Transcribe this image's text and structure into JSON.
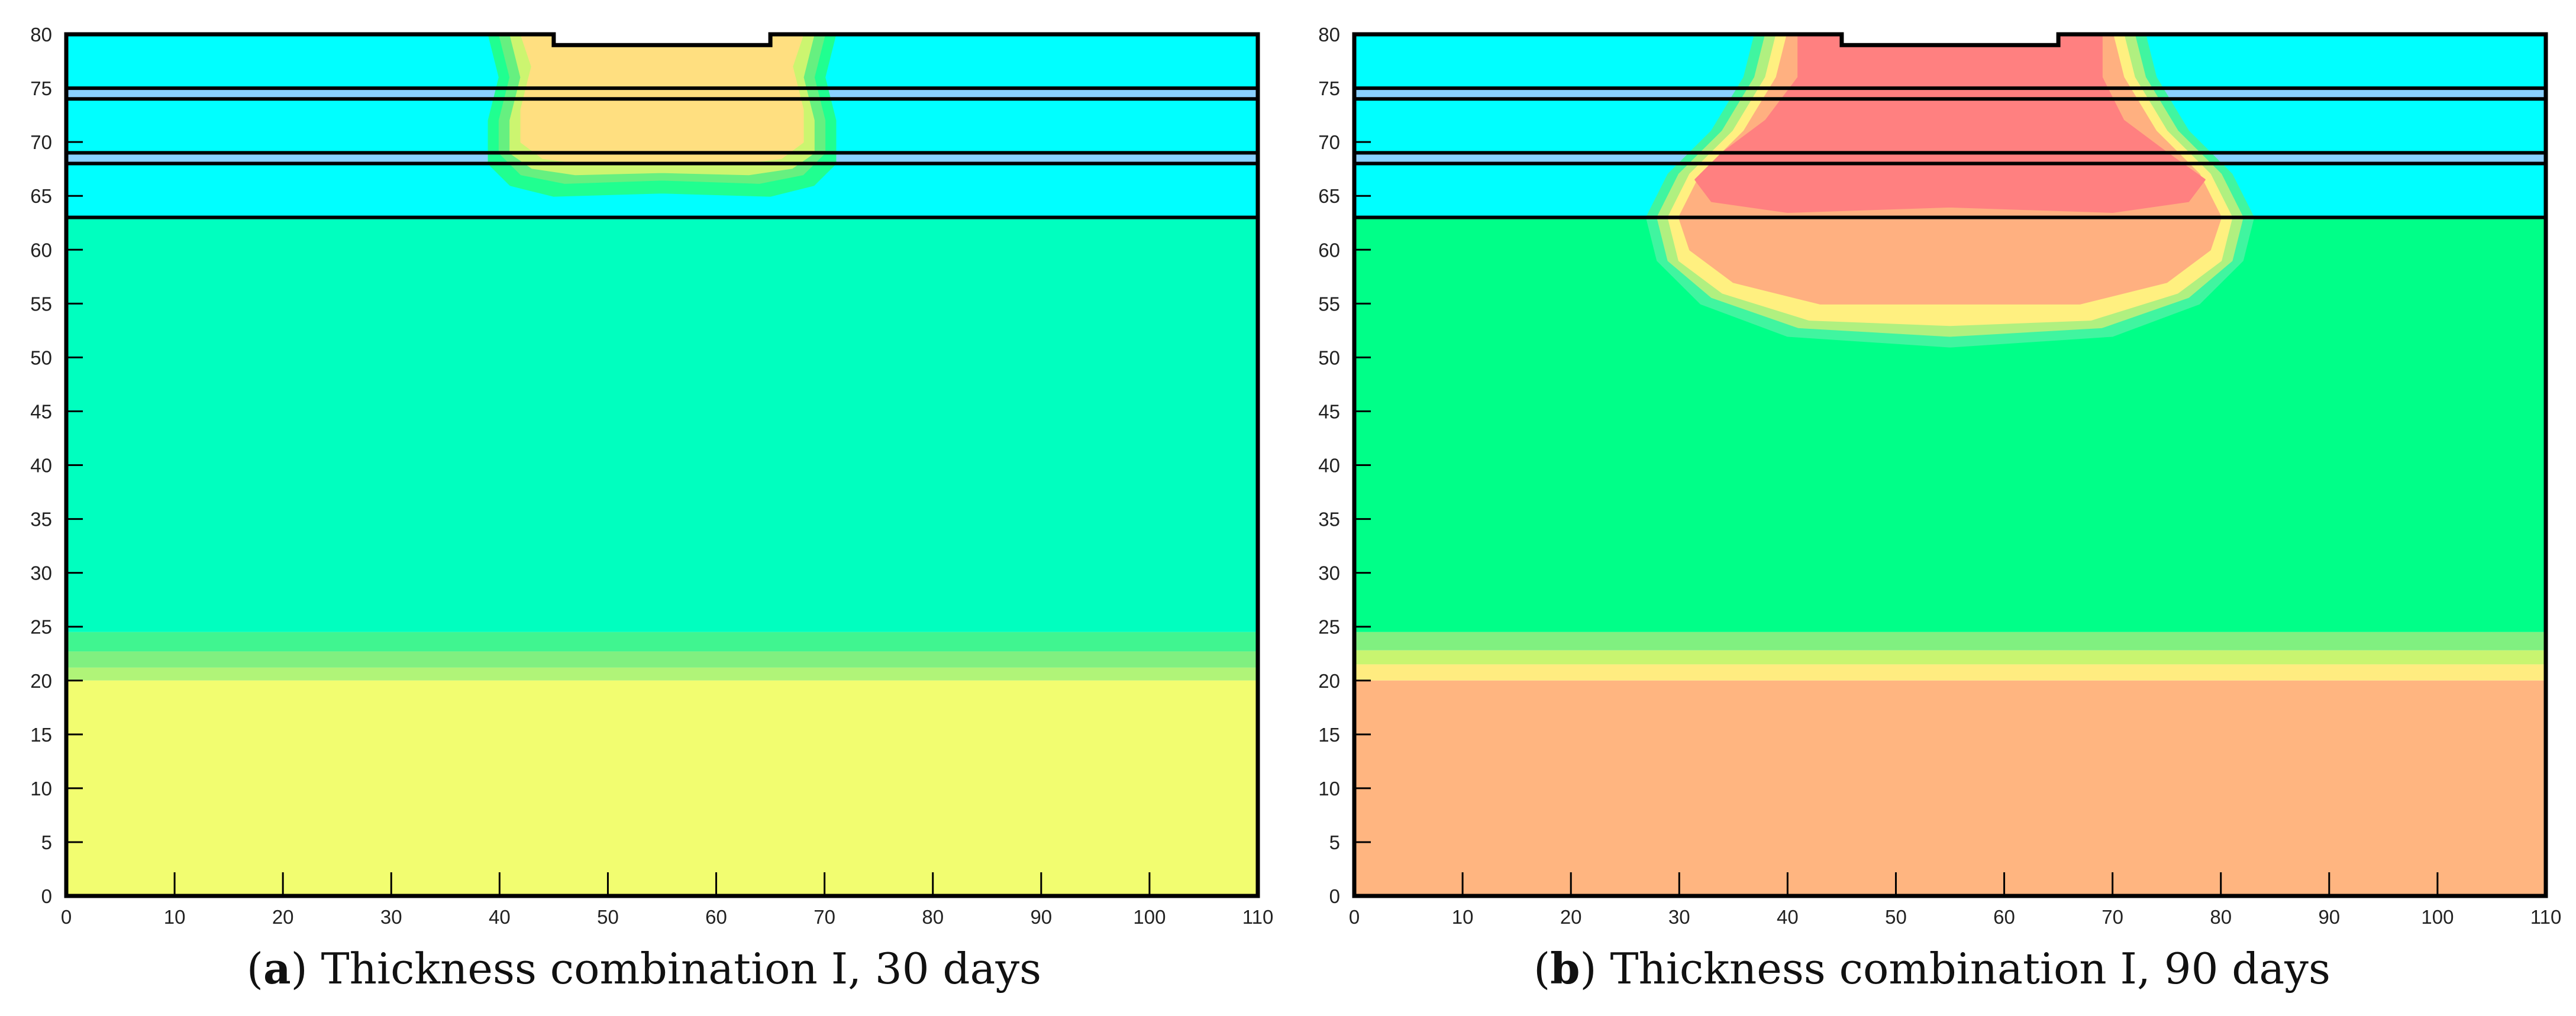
{
  "chart_data": [
    {
      "type": "heatmap",
      "panel_letter": "a",
      "caption_text": "Thickness combination I, 30 days",
      "xlim": [
        0,
        110
      ],
      "ylim": [
        0,
        80
      ],
      "x_ticks": [
        0,
        10,
        20,
        30,
        40,
        50,
        60,
        70,
        80,
        90,
        100,
        110
      ],
      "y_ticks": [
        0,
        5,
        10,
        15,
        20,
        25,
        30,
        35,
        40,
        45,
        50,
        55,
        60,
        65,
        70,
        75,
        80
      ],
      "notch": {
        "x1": 45,
        "x2": 65,
        "depth": 1
      },
      "layer_boundaries": [
        74,
        75,
        68,
        69,
        63
      ],
      "background_bands": [
        {
          "y0": 63,
          "y1": 80,
          "color": "#00ffff"
        },
        {
          "y0": 24.5,
          "y1": 63,
          "color": "#00ffbf"
        },
        {
          "y0": 22.7,
          "y1": 24.5,
          "color": "#40f590"
        },
        {
          "y0": 21.2,
          "y1": 22.7,
          "color": "#80f080"
        },
        {
          "y0": 20,
          "y1": 21.2,
          "color": "#b0f478"
        },
        {
          "y0": 0,
          "y1": 20,
          "color": "#f2fd70"
        }
      ],
      "plumes": [
        {
          "color": "#20ff90",
          "outline": [
            [
              39,
              80
            ],
            [
              40,
              76
            ],
            [
              39,
              72
            ],
            [
              39,
              68
            ],
            [
              41,
              66
            ],
            [
              45,
              65
            ],
            [
              55,
              65.3
            ],
            [
              65,
              65
            ],
            [
              69,
              66
            ],
            [
              71,
              68
            ],
            [
              71,
              72
            ],
            [
              70,
              76
            ],
            [
              71,
              80
            ]
          ]
        },
        {
          "color": "#66f080",
          "outline": [
            [
              40,
              80
            ],
            [
              41,
              76
            ],
            [
              40,
              72
            ],
            [
              40,
              69
            ],
            [
              42,
              67
            ],
            [
              46,
              66.2
            ],
            [
              55,
              66.5
            ],
            [
              64,
              66.2
            ],
            [
              68,
              67
            ],
            [
              70,
              69
            ],
            [
              70,
              72
            ],
            [
              69,
              76
            ],
            [
              70,
              80
            ]
          ]
        },
        {
          "color": "#ccf570",
          "outline": [
            [
              41,
              80
            ],
            [
              42,
              76
            ],
            [
              41,
              72
            ],
            [
              41,
              69
            ],
            [
              43,
              67.6
            ],
            [
              47,
              67
            ],
            [
              55,
              67.2
            ],
            [
              63,
              67
            ],
            [
              67,
              67.6
            ],
            [
              69,
              69
            ],
            [
              69,
              72
            ],
            [
              68,
              76
            ],
            [
              69,
              80
            ]
          ]
        },
        {
          "color": "#ffdf80",
          "outline": [
            [
              42,
              80
            ],
            [
              43,
              77
            ],
            [
              42,
              73
            ],
            [
              42,
              70
            ],
            [
              44,
              68.5
            ],
            [
              48,
              68
            ],
            [
              55,
              68
            ],
            [
              62,
              68
            ],
            [
              66,
              68.5
            ],
            [
              68,
              70
            ],
            [
              68,
              73
            ],
            [
              67,
              77
            ],
            [
              68,
              80
            ]
          ]
        }
      ],
      "colors": {
        "layer_line": "#000000",
        "thin_layer": "#8ad0ff"
      }
    },
    {
      "type": "heatmap",
      "panel_letter": "b",
      "caption_text": "Thickness combination I, 90 days",
      "xlim": [
        0,
        110
      ],
      "ylim": [
        0,
        80
      ],
      "x_ticks": [
        0,
        10,
        20,
        30,
        40,
        50,
        60,
        70,
        80,
        90,
        100,
        110
      ],
      "y_ticks": [
        0,
        5,
        10,
        15,
        20,
        25,
        30,
        35,
        40,
        45,
        50,
        55,
        60,
        65,
        70,
        75,
        80
      ],
      "notch": {
        "x1": 45,
        "x2": 65,
        "depth": 1
      },
      "layer_boundaries": [
        74,
        75,
        68,
        69,
        63
      ],
      "background_bands": [
        {
          "y0": 63,
          "y1": 80,
          "color": "#00ffff"
        },
        {
          "y0": 24.5,
          "y1": 63,
          "color": "#00ff88"
        },
        {
          "y0": 22.8,
          "y1": 24.5,
          "color": "#80f080"
        },
        {
          "y0": 21.5,
          "y1": 22.8,
          "color": "#c8f570"
        },
        {
          "y0": 20,
          "y1": 21.5,
          "color": "#ffec80"
        },
        {
          "y0": 0,
          "y1": 20,
          "color": "#ffb580"
        }
      ],
      "plumes": [
        {
          "color": "#40f5a0",
          "outline": [
            [
              37,
              80
            ],
            [
              36,
              76
            ],
            [
              33,
              71
            ],
            [
              29,
              67
            ],
            [
              27,
              63
            ],
            [
              28,
              59
            ],
            [
              32,
              55
            ],
            [
              40,
              52
            ],
            [
              55,
              51
            ],
            [
              70,
              52
            ],
            [
              78,
              55
            ],
            [
              82,
              59
            ],
            [
              83,
              63
            ],
            [
              81,
              67
            ],
            [
              77,
              71
            ],
            [
              74,
              76
            ],
            [
              73,
              80
            ]
          ]
        },
        {
          "color": "#b0f080",
          "outline": [
            [
              38,
              80
            ],
            [
              37,
              76
            ],
            [
              34,
              71
            ],
            [
              30,
              67
            ],
            [
              28,
              63
            ],
            [
              29,
              59
            ],
            [
              33,
              55.6
            ],
            [
              41,
              52.8
            ],
            [
              55,
              52
            ],
            [
              69,
              52.8
            ],
            [
              77,
              55.6
            ],
            [
              81,
              59
            ],
            [
              82,
              63
            ],
            [
              80,
              67
            ],
            [
              76,
              71
            ],
            [
              73,
              76
            ],
            [
              72,
              80
            ]
          ]
        },
        {
          "color": "#fff080",
          "outline": [
            [
              39,
              80
            ],
            [
              38,
              76
            ],
            [
              35,
              71
            ],
            [
              31,
              67
            ],
            [
              29,
              63
            ],
            [
              30,
              59
            ],
            [
              34,
              56
            ],
            [
              42,
              53.5
            ],
            [
              55,
              53
            ],
            [
              68,
              53.5
            ],
            [
              76,
              56
            ],
            [
              80,
              59
            ],
            [
              81,
              63
            ],
            [
              79,
              67
            ],
            [
              75,
              71
            ],
            [
              72,
              76
            ],
            [
              71,
              80
            ]
          ]
        },
        {
          "color": "#ffb080",
          "outline": [
            [
              40,
              80
            ],
            [
              39,
              76
            ],
            [
              36,
              71
            ],
            [
              32,
              67
            ],
            [
              30,
              63
            ],
            [
              31,
              60
            ],
            [
              35,
              57
            ],
            [
              43,
              55
            ],
            [
              55,
              55
            ],
            [
              67,
              55
            ],
            [
              75,
              57
            ],
            [
              79,
              60
            ],
            [
              80,
              63
            ],
            [
              78,
              67
            ],
            [
              74,
              71
            ],
            [
              71,
              76
            ],
            [
              70,
              80
            ]
          ]
        },
        {
          "color": "#ff8080",
          "outline": [
            [
              41,
              80
            ],
            [
              41,
              76
            ],
            [
              38,
              72
            ],
            [
              34,
              69
            ],
            [
              31.5,
              66.5
            ],
            [
              33,
              64.5
            ],
            [
              40,
              63.5
            ],
            [
              55,
              64
            ],
            [
              70,
              63.5
            ],
            [
              77,
              64.5
            ],
            [
              78.5,
              66.5
            ],
            [
              75,
              69
            ],
            [
              71,
              72
            ],
            [
              69,
              76
            ],
            [
              69,
              80
            ]
          ]
        }
      ],
      "colors": {
        "layer_line": "#000000",
        "thin_layer": "#8ad0ff"
      }
    }
  ]
}
